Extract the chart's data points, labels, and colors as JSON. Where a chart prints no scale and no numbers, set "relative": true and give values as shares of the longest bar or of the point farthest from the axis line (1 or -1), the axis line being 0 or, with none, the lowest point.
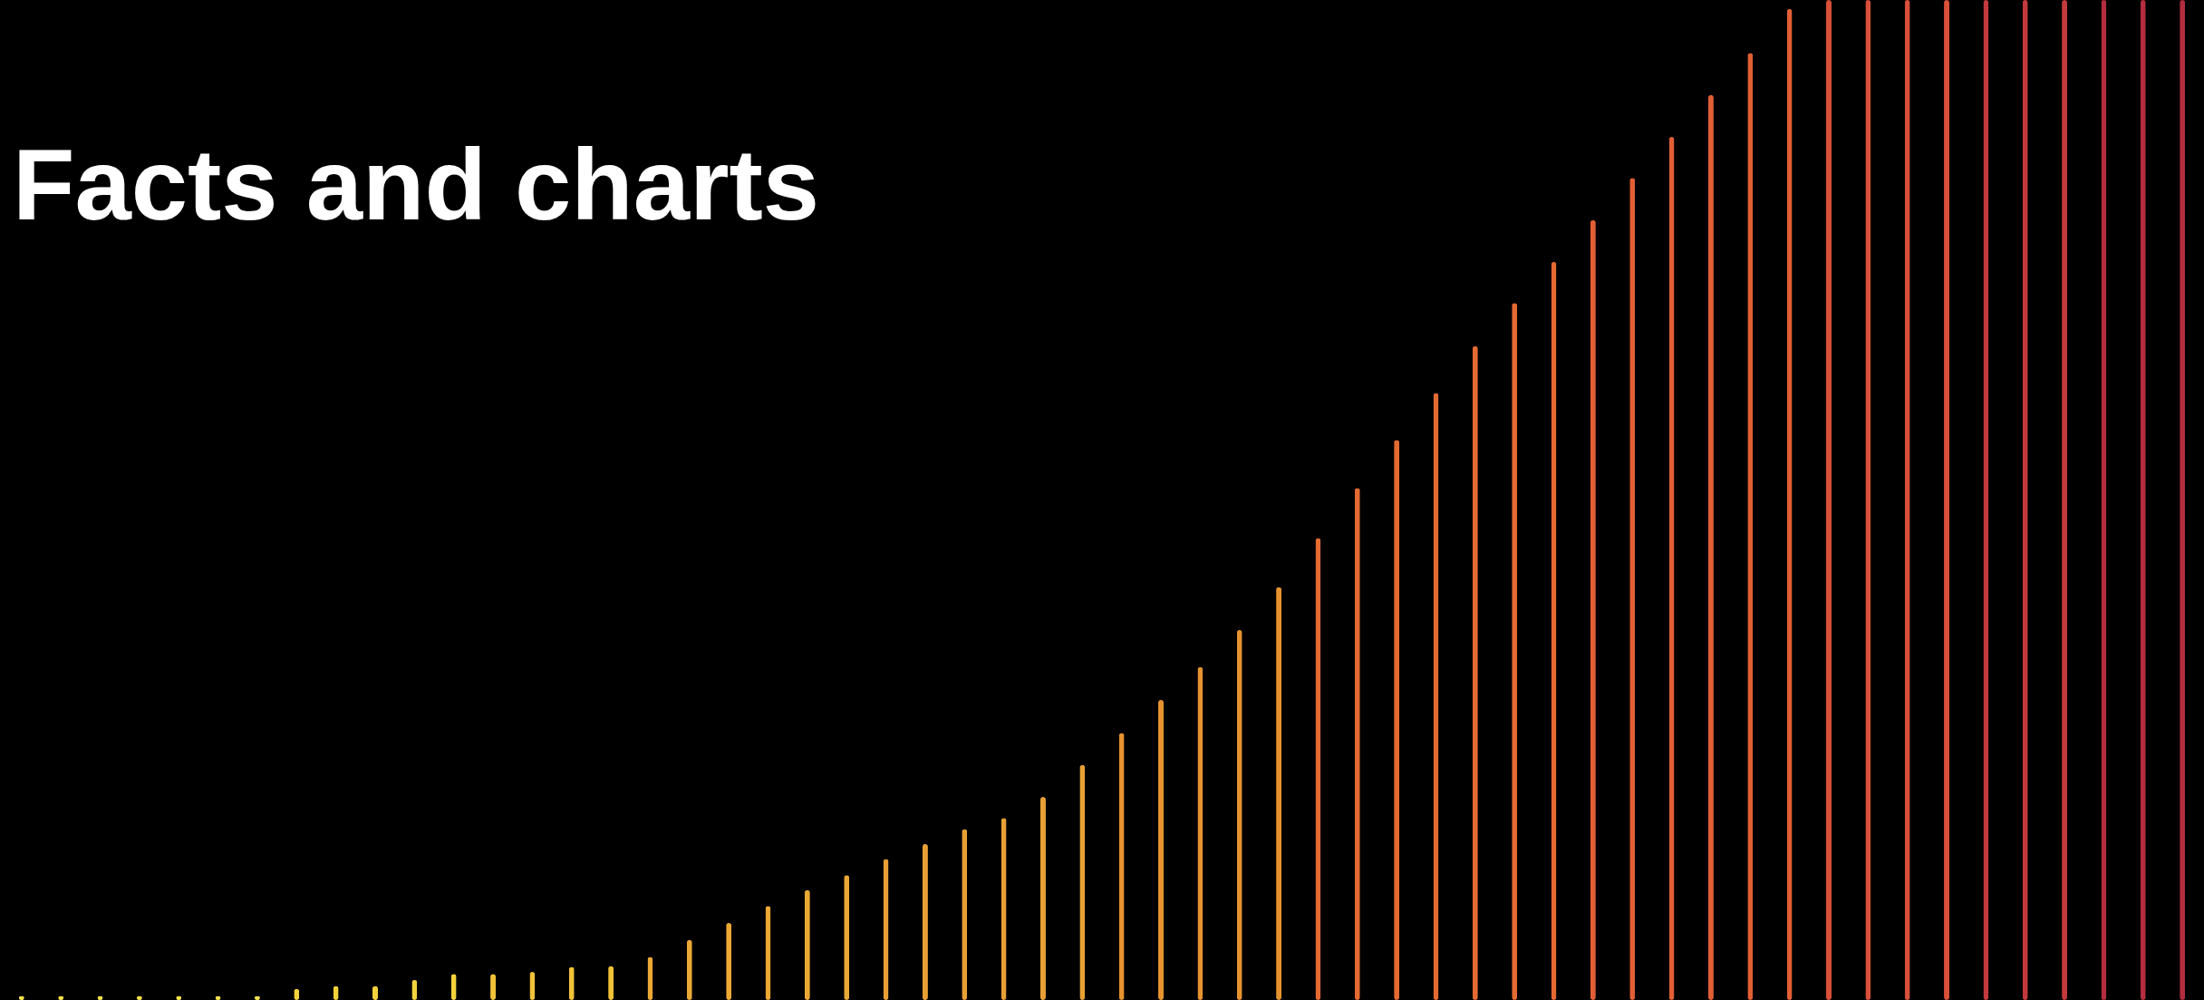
{
  "chart_data": {
    "type": "bar",
    "title": "Facts and charts",
    "relative": true,
    "categories": [
      null,
      null,
      null,
      null,
      null,
      null,
      null,
      null,
      null,
      null,
      null,
      null,
      null,
      null,
      null,
      null,
      null,
      null,
      null,
      null,
      null,
      null,
      null,
      null,
      null,
      null,
      null,
      null,
      null,
      null,
      null,
      null,
      null,
      null,
      null,
      null,
      null,
      null,
      null,
      null,
      null,
      null,
      null,
      null,
      null,
      null,
      null,
      null,
      null,
      null,
      null,
      null,
      null,
      null,
      null,
      null
    ],
    "values": [
      0.004,
      0.004,
      0.004,
      0.004,
      0.004,
      0.004,
      0.004,
      0.011,
      0.014,
      0.014,
      0.02,
      0.026,
      0.026,
      0.028,
      0.033,
      0.034,
      0.043,
      0.06,
      0.077,
      0.094,
      0.11,
      0.125,
      0.141,
      0.156,
      0.171,
      0.182,
      0.203,
      0.235,
      0.267,
      0.3,
      0.333,
      0.37,
      0.413,
      0.462,
      0.512,
      0.56,
      0.607,
      0.654,
      0.697,
      0.738,
      0.78,
      0.822,
      0.863,
      0.905,
      0.947,
      0.991,
      1,
      1,
      1,
      1,
      1,
      1,
      1,
      1,
      1,
      1
    ],
    "colors": [
      "#f2e04a",
      "#f2e04a",
      "#f2e04a",
      "#f2e04a",
      "#f2e04a",
      "#f2e04a",
      "#f2e04a",
      "#f3d23c",
      "#f3d23c",
      "#f3d23c",
      "#f3d23c",
      "#f3d23c",
      "#f0c238",
      "#f0c238",
      "#f0c238",
      "#f0c238",
      "#eba835",
      "#eba835",
      "#eba835",
      "#eba835",
      "#eba835",
      "#eba835",
      "#e8a035",
      "#e8a035",
      "#e8a035",
      "#e8a035",
      "#e8a035",
      "#e8a035",
      "#e6932f",
      "#e6932f",
      "#e6932f",
      "#e6932f",
      "#e6932f",
      "#e46a32",
      "#e46a32",
      "#e46a32",
      "#e46a32",
      "#e46a32",
      "#e46a32",
      "#e46a32",
      "#e25f35",
      "#e25f35",
      "#e25f35",
      "#e25f35",
      "#e25f35",
      "#e25f35",
      "#d8503a",
      "#d8503a",
      "#d8503a",
      "#d8503a",
      "#c23a3c",
      "#c23a3c",
      "#c23a3c",
      "#b32d3e",
      "#b32d3e",
      "#b32d3e"
    ]
  }
}
